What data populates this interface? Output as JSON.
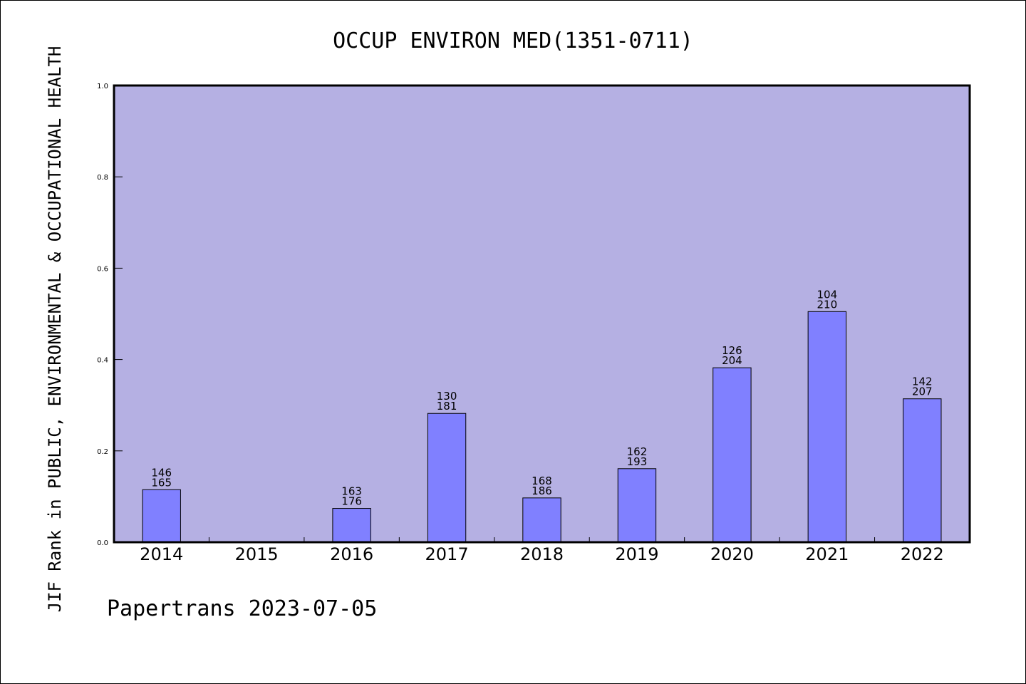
{
  "chart_data": {
    "type": "bar",
    "title": "OCCUP ENVIRON MED(1351-0711)",
    "ylabel": "JIF Rank in PUBLIC, ENVIRONMENTAL & OCCUPATIONAL HEALTH",
    "xlabel": "",
    "footer": "Papertrans 2023-07-05",
    "ylim": [
      0.0,
      1.0
    ],
    "yticks": [
      "0.0",
      "0.2",
      "0.4",
      "0.6",
      "0.8",
      "1.0"
    ],
    "categories": [
      "2014",
      "2015",
      "2016",
      "2017",
      "2018",
      "2019",
      "2020",
      "2021",
      "2022"
    ],
    "values": [
      0.115,
      null,
      0.074,
      0.282,
      0.097,
      0.161,
      0.382,
      0.505,
      0.314
    ],
    "labels": [
      [
        "146",
        "165"
      ],
      null,
      [
        "163",
        "176"
      ],
      [
        "130",
        "181"
      ],
      [
        "168",
        "186"
      ],
      [
        "162",
        "193"
      ],
      [
        "126",
        "204"
      ],
      [
        "104",
        "210"
      ],
      [
        "142",
        "207"
      ]
    ],
    "grid": false,
    "colors": {
      "plot_background": "#b5b0e3",
      "bar_fill": "#8080ff",
      "bar_stroke": "#000000"
    }
  }
}
